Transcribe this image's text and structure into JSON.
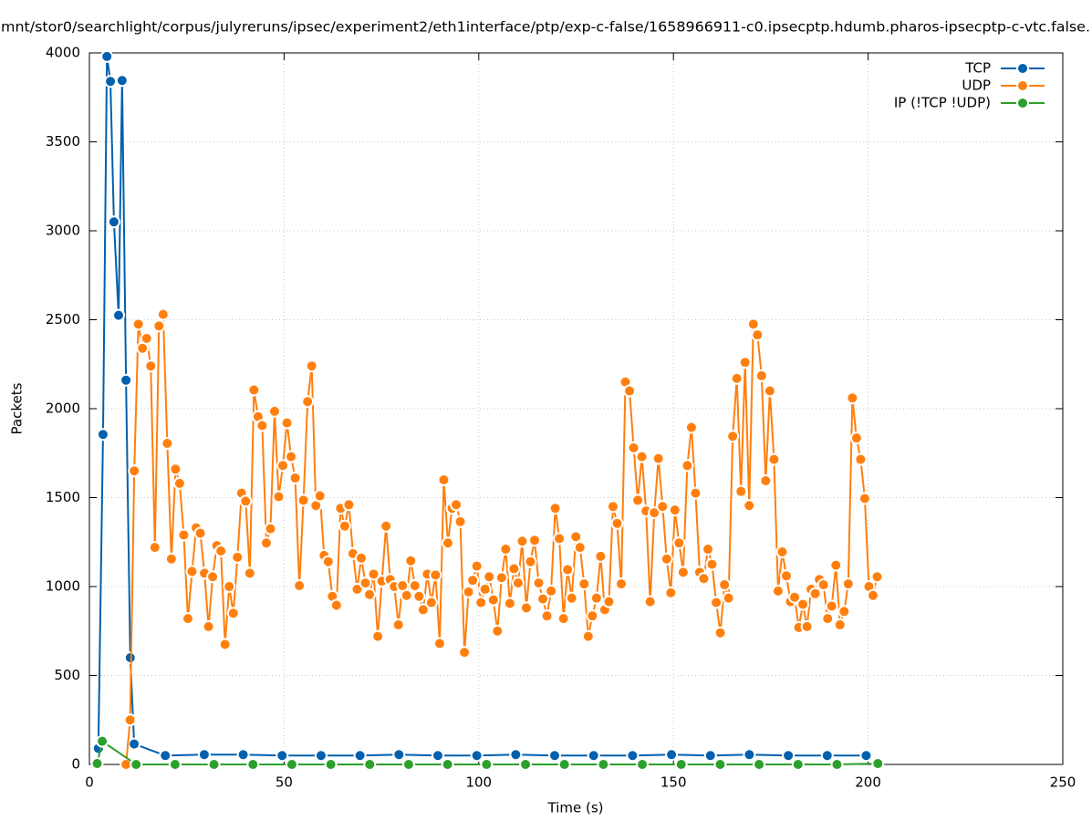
{
  "chart_data": {
    "type": "line",
    "title": "mnt/stor0/searchlight/corpus/julyreruns/ipsec/experiment2/eth1interface/ptp/exp-c-false/1658966911-c0.ipsecptp.hdumb.pharos-ipsecptp-c-vtc.false.",
    "xlabel": "Time (s)",
    "ylabel": "Packets",
    "xlim": [
      0,
      250
    ],
    "xticks": [
      0,
      50,
      100,
      150,
      200,
      250
    ],
    "ylim": [
      0,
      4000
    ],
    "yticks": [
      0,
      500,
      1000,
      1500,
      2000,
      2500,
      3000,
      3500,
      4000
    ],
    "grid": true,
    "legend": "top-right",
    "series": [
      {
        "name": "TCP",
        "color": "#0060ad",
        "x": [
          2.3,
          3.5,
          4.5,
          5.4,
          6.3,
          7.5,
          8.4,
          9.4,
          10.5,
          11.5,
          19.5,
          29.5,
          39.5,
          49.5,
          59.5,
          69.5,
          79.5,
          89.5,
          99.5,
          109.5,
          119.5,
          129.5,
          139.5,
          149.5,
          159.5,
          169.5,
          179.5,
          189.5,
          199.5
        ],
        "values": [
          90,
          1855,
          3980,
          3840,
          3050,
          2525,
          3845,
          2160,
          600,
          115,
          50,
          55,
          55,
          50,
          50,
          50,
          55,
          50,
          50,
          55,
          50,
          50,
          50,
          55,
          50,
          55,
          50,
          50,
          50
        ]
      },
      {
        "name": "UDP",
        "color": "#ff7f0e",
        "x": [
          9.4,
          10.46,
          11.52,
          12.58,
          13.64,
          14.7,
          15.76,
          16.82,
          17.88,
          18.94,
          20,
          21.06,
          22.12,
          23.18,
          24.24,
          25.3,
          26.36,
          27.42,
          28.48,
          29.54,
          30.6,
          31.66,
          32.72,
          33.78,
          34.84,
          35.9,
          36.96,
          38.02,
          39.08,
          40.14,
          41.2,
          42.26,
          43.32,
          44.38,
          45.44,
          46.5,
          47.56,
          48.62,
          49.68,
          50.74,
          51.8,
          52.86,
          53.92,
          54.98,
          56.04,
          57.1,
          58.16,
          59.22,
          60.28,
          61.34,
          62.4,
          63.46,
          64.52,
          65.58,
          66.64,
          67.7,
          68.76,
          69.82,
          70.88,
          71.94,
          73,
          74.06,
          75.12,
          76.18,
          77.24,
          78.3,
          79.36,
          80.42,
          81.48,
          82.54,
          83.6,
          84.66,
          85.72,
          86.78,
          87.84,
          88.9,
          89.96,
          91.02,
          92.08,
          93.14,
          94.2,
          95.26,
          96.32,
          97.38,
          98.44,
          99.5,
          100.56,
          101.62,
          102.68,
          103.74,
          104.8,
          105.86,
          106.92,
          107.98,
          109.04,
          110.1,
          111.16,
          112.22,
          113.28,
          114.34,
          115.4,
          116.46,
          117.52,
          118.58,
          119.64,
          120.7,
          121.76,
          122.82,
          123.88,
          124.94,
          126,
          127.06,
          128.12,
          129.18,
          130.24,
          131.3,
          132.36,
          133.42,
          134.48,
          135.54,
          136.6,
          137.66,
          138.72,
          139.78,
          140.84,
          141.9,
          142.96,
          144.02,
          145.08,
          146.14,
          147.2,
          148.26,
          149.32,
          150.38,
          151.44,
          152.5,
          153.56,
          154.62,
          155.68,
          156.74,
          157.8,
          158.86,
          159.92,
          160.98,
          162.04,
          163.1,
          164.16,
          165.22,
          166.28,
          167.34,
          168.4,
          169.46,
          170.52,
          171.58,
          172.64,
          173.7,
          174.76,
          175.82,
          176.88,
          177.94,
          179,
          180.06,
          181.12,
          182.18,
          183.24,
          184.3,
          185.36,
          186.42,
          187.48,
          188.54,
          189.6,
          190.66,
          191.72,
          192.78,
          193.84,
          194.9,
          195.96,
          197.02,
          198.08,
          199.14,
          200.2,
          201.26,
          202.32
        ],
        "values": [
          0,
          250,
          1650,
          2475,
          2340,
          2395,
          2240,
          1220,
          2465,
          2530,
          1805,
          1155,
          1660,
          1580,
          1290,
          820,
          1085,
          1330,
          1300,
          1075,
          775,
          1055,
          1230,
          1200,
          675,
          1000,
          850,
          1165,
          1525,
          1480,
          1075,
          2105,
          1955,
          1905,
          1245,
          1325,
          1985,
          1505,
          1680,
          1920,
          1730,
          1610,
          1005,
          1485,
          2040,
          2240,
          1455,
          1510,
          1175,
          1140,
          945,
          895,
          1440,
          1340,
          1460,
          1185,
          985,
          1160,
          1020,
          955,
          1070,
          720,
          1030,
          1340,
          1040,
          1000,
          785,
          1005,
          950,
          1145,
          1005,
          945,
          870,
          1070,
          910,
          1065,
          680,
          1600,
          1245,
          1440,
          1460,
          1365,
          630,
          970,
          1035,
          1115,
          910,
          985,
          1055,
          925,
          750,
          1050,
          1210,
          905,
          1100,
          1020,
          1255,
          880,
          1140,
          1260,
          1020,
          930,
          835,
          975,
          1440,
          1270,
          820,
          1095,
          935,
          1280,
          1220,
          1015,
          720,
          835,
          935,
          1170,
          870,
          915,
          1450,
          1355,
          1015,
          2150,
          2100,
          1780,
          1485,
          1730,
          1425,
          915,
          1415,
          1720,
          1450,
          1155,
          965,
          1430,
          1245,
          1080,
          1680,
          1895,
          1525,
          1080,
          1045,
          1210,
          1125,
          910,
          740,
          1010,
          935,
          1845,
          2170,
          1535,
          2260,
          1455,
          2475,
          2415,
          2185,
          1595,
          2100,
          1715,
          975,
          1195,
          1060,
          915,
          940,
          770,
          900,
          775,
          985,
          960,
          1040,
          1010,
          820,
          890,
          1120,
          785,
          860,
          1015,
          2060,
          1835,
          1715,
          1495,
          1000,
          950,
          1055
        ]
      },
      {
        "name": "IP (!TCP  !UDP)",
        "color": "#2ca02c",
        "x": [
          2,
          3.3,
          12,
          22,
          32,
          42,
          52,
          62,
          72,
          82,
          92,
          102,
          112,
          122,
          132,
          142,
          152,
          162,
          172,
          182,
          192,
          202.5
        ],
        "values": [
          5,
          130,
          0,
          0,
          0,
          0,
          0,
          0,
          0,
          0,
          0,
          0,
          0,
          0,
          0,
          0,
          0,
          0,
          0,
          0,
          0,
          5
        ]
      }
    ]
  }
}
